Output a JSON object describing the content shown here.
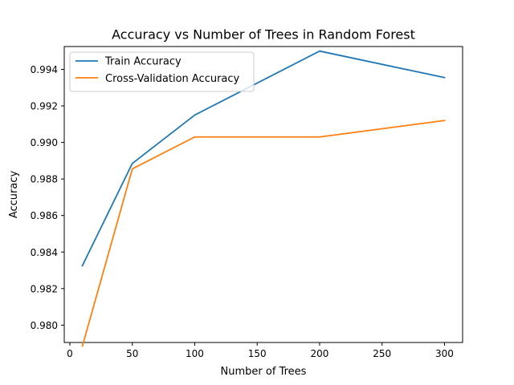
{
  "chart_data": {
    "type": "line",
    "title": "Accuracy vs Number of Trees in Random Forest",
    "xlabel": "Number of Trees",
    "ylabel": "Accuracy",
    "xlim": [
      -4.5,
      314.5
    ],
    "ylim": [
      0.97905,
      0.99525
    ],
    "xticks": [
      0,
      50,
      100,
      150,
      200,
      250,
      300
    ],
    "yticks": [
      0.98,
      0.982,
      0.984,
      0.986,
      0.988,
      0.99,
      0.992,
      0.994
    ],
    "x": [
      10,
      50,
      100,
      200,
      300
    ],
    "series": [
      {
        "name": "Train Accuracy",
        "color": "#1f77b4",
        "values": [
          0.98325,
          0.98885,
          0.9915,
          0.995,
          0.99355
        ]
      },
      {
        "name": "Cross-Validation Accuracy",
        "color": "#ff7f0e",
        "values": [
          0.97885,
          0.98855,
          0.9903,
          0.9903,
          0.9912
        ]
      }
    ],
    "grid": false,
    "legend": "top-left"
  }
}
